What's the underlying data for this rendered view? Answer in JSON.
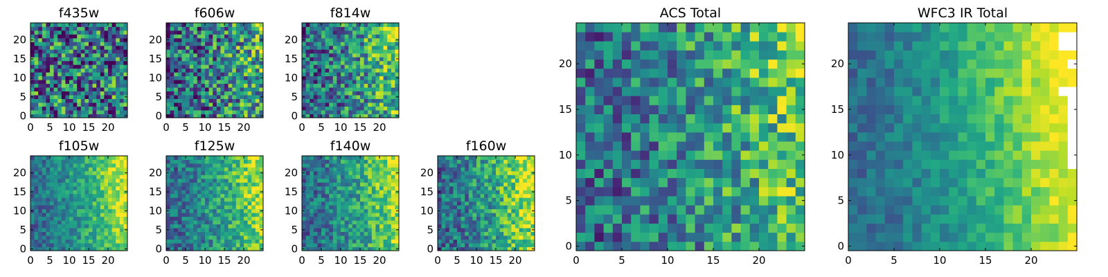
{
  "chart_data": [
    {
      "type": "heatmap",
      "title": "f435w",
      "size": 25,
      "xticks": [
        0,
        5,
        10,
        15,
        20
      ],
      "yticks": [
        0,
        5,
        10,
        15,
        20
      ],
      "xlim": [
        0,
        25
      ],
      "ylim": [
        0,
        25
      ],
      "colormap": "viridis",
      "pattern": "noise",
      "value_range": [
        0,
        1
      ],
      "seed": 11,
      "noise": 0.45,
      "gradient": 0.0
    },
    {
      "type": "heatmap",
      "title": "f606w",
      "size": 25,
      "xticks": [
        0,
        5,
        10,
        15,
        20
      ],
      "yticks": [
        0,
        5,
        10,
        15,
        20
      ],
      "xlim": [
        0,
        25
      ],
      "ylim": [
        0,
        25
      ],
      "colormap": "viridis",
      "pattern": "gradient-noise",
      "value_range": [
        0,
        1
      ],
      "seed": 23,
      "noise": 0.4,
      "gradient": 0.35
    },
    {
      "type": "heatmap",
      "title": "f814w",
      "size": 25,
      "xticks": [
        0,
        5,
        10,
        15,
        20
      ],
      "yticks": [
        0,
        5,
        10,
        15,
        20
      ],
      "xlim": [
        0,
        25
      ],
      "ylim": [
        0,
        25
      ],
      "colormap": "viridis",
      "pattern": "gradient-noise",
      "value_range": [
        0,
        1
      ],
      "seed": 37,
      "noise": 0.35,
      "gradient": 0.5
    },
    {
      "type": "heatmap",
      "title": "f105w",
      "size": 25,
      "xticks": [
        0,
        5,
        10,
        15,
        20
      ],
      "yticks": [
        0,
        5,
        10,
        15,
        20
      ],
      "xlim": [
        0,
        25
      ],
      "ylim": [
        0,
        25
      ],
      "colormap": "viridis",
      "pattern": "gradient-smooth",
      "value_range": [
        0,
        1
      ],
      "seed": 41,
      "noise": 0.18,
      "gradient": 0.75
    },
    {
      "type": "heatmap",
      "title": "f125w",
      "size": 25,
      "xticks": [
        0,
        5,
        10,
        15,
        20
      ],
      "yticks": [
        0,
        5,
        10,
        15,
        20
      ],
      "xlim": [
        0,
        25
      ],
      "ylim": [
        0,
        25
      ],
      "colormap": "viridis",
      "pattern": "gradient-smooth",
      "value_range": [
        0,
        1
      ],
      "seed": 53,
      "noise": 0.22,
      "gradient": 0.7
    },
    {
      "type": "heatmap",
      "title": "f140w",
      "size": 25,
      "xticks": [
        0,
        5,
        10,
        15,
        20
      ],
      "yticks": [
        0,
        5,
        10,
        15,
        20
      ],
      "xlim": [
        0,
        25
      ],
      "ylim": [
        0,
        25
      ],
      "colormap": "viridis",
      "pattern": "gradient-smooth",
      "value_range": [
        0,
        1
      ],
      "seed": 67,
      "noise": 0.22,
      "gradient": 0.7
    },
    {
      "type": "heatmap",
      "title": "f160w",
      "size": 25,
      "xticks": [
        0,
        5,
        10,
        15,
        20
      ],
      "yticks": [
        0,
        5,
        10,
        15,
        20
      ],
      "xlim": [
        0,
        25
      ],
      "ylim": [
        0,
        25
      ],
      "colormap": "viridis",
      "pattern": "gradient-smooth",
      "value_range": [
        0,
        1
      ],
      "seed": 79,
      "noise": 0.25,
      "gradient": 0.75
    },
    {
      "type": "heatmap",
      "title": "ACS Total",
      "size": 25,
      "xticks": [
        0,
        5,
        10,
        15,
        20
      ],
      "yticks": [
        0,
        5,
        10,
        15,
        20
      ],
      "xlim": [
        0,
        25
      ],
      "ylim": [
        0,
        25
      ],
      "colormap": "viridis",
      "pattern": "gradient-noise",
      "value_range": [
        0,
        1
      ],
      "seed": 97,
      "noise": 0.3,
      "gradient": 0.55
    },
    {
      "type": "heatmap",
      "title": "WFC3 IR Total",
      "size": 25,
      "xticks": [
        0,
        5,
        10,
        15,
        20
      ],
      "yticks": [
        0,
        5,
        10,
        15,
        20
      ],
      "xlim": [
        0,
        25
      ],
      "ylim": [
        0,
        25
      ],
      "colormap": "viridis",
      "pattern": "gradient-smooth",
      "value_range": [
        0,
        1
      ],
      "seed": 113,
      "noise": 0.12,
      "gradient": 0.9,
      "masked_cells": [
        [
          23,
          22
        ],
        [
          24,
          22
        ],
        [
          23,
          23
        ],
        [
          24,
          23
        ],
        [
          24,
          20
        ],
        [
          23,
          17
        ],
        [
          24,
          17
        ],
        [
          24,
          16
        ],
        [
          24,
          15
        ],
        [
          24,
          14
        ],
        [
          24,
          13
        ],
        [
          24,
          12
        ],
        [
          24,
          11
        ],
        [
          24,
          10
        ],
        [
          24,
          9
        ]
      ]
    }
  ]
}
